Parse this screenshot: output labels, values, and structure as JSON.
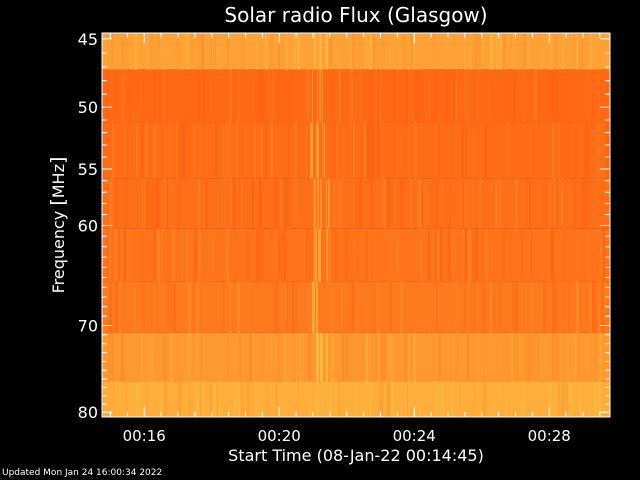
{
  "chart_data": {
    "type": "heatmap",
    "title": "Solar radio Flux (Glasgow)",
    "xlabel": "Start Time (08-Jan-22 00:14:45)",
    "ylabel_text": "Frequency ",
    "ylabel_unit": "MHz",
    "y_ticks": [
      45,
      50,
      55,
      60,
      70,
      80
    ],
    "y_scale": "log",
    "ylim": [
      44.6,
      80.6
    ],
    "x_ticks": [
      {
        "minutes": 16,
        "label": "00:16"
      },
      {
        "minutes": 20,
        "label": "00:20"
      },
      {
        "minutes": 24,
        "label": "00:24"
      },
      {
        "minutes": 28,
        "label": "00:28"
      }
    ],
    "xlim_minutes": [
      14.75,
      29.8
    ],
    "bands": [
      {
        "freq_low": 44.6,
        "freq_high": 47.2,
        "level": 0.25
      },
      {
        "freq_low": 47.2,
        "freq_high": 51.2,
        "level": 0.92
      },
      {
        "freq_low": 51.2,
        "freq_high": 55.8,
        "level": 0.88
      },
      {
        "freq_low": 55.8,
        "freq_high": 60.3,
        "level": 0.85
      },
      {
        "freq_low": 60.3,
        "freq_high": 65.4,
        "level": 0.8
      },
      {
        "freq_low": 65.4,
        "freq_high": 70.8,
        "level": 0.72
      },
      {
        "freq_low": 70.8,
        "freq_high": 76.3,
        "level": 0.35
      },
      {
        "freq_low": 76.3,
        "freq_high": 80.6,
        "level": 0.1
      }
    ],
    "quiet_interval_minutes": [
      20.95,
      21.5
    ],
    "colormap": {
      "low": "#ffb640",
      "high": "#ff6210"
    }
  },
  "footer": {
    "updated": "Updated Mon Jan 24 16:00:34 2022"
  }
}
